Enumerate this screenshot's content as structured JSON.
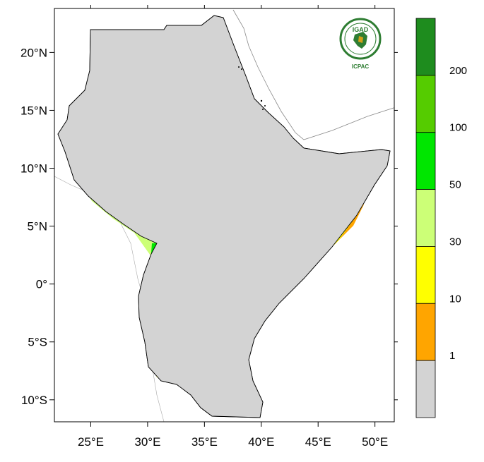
{
  "map": {
    "lat_ticks": [
      "20°N",
      "15°N",
      "10°N",
      "5°N",
      "0°",
      "5°S",
      "10°S"
    ],
    "lon_ticks": [
      "25°E",
      "30°E",
      "35°E",
      "40°E",
      "45°E",
      "50°E"
    ],
    "extent": {
      "lon_min": 21.8,
      "lon_max": 51.7,
      "lat_min": -11.9,
      "lat_max": 23.8
    }
  },
  "legend": {
    "labels": [
      "200",
      "100",
      "50",
      "30",
      "10",
      "1"
    ],
    "colors": [
      "#1e8c1e",
      "#55cc00",
      "#00e600",
      "#ccff77",
      "#ffff00",
      "#ffa500",
      "#d3d3d3"
    ]
  },
  "logo": {
    "top_text": "IGAD",
    "bottom_text": "ICPAC",
    "ring_color": "#2e7d32",
    "accent_color": "#d4a017"
  }
}
